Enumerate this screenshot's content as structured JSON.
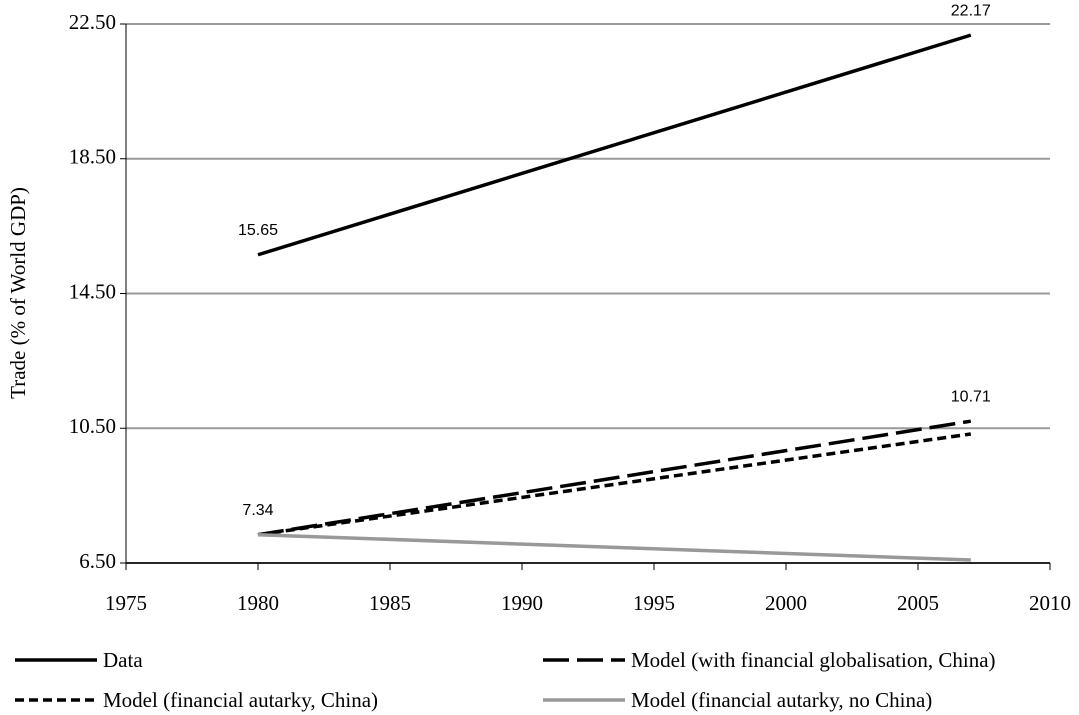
{
  "chart_data": {
    "type": "line",
    "y_label": "Trade (% of World GDP)",
    "xlim": [
      1975,
      2010
    ],
    "xticks": [
      1975,
      1980,
      1985,
      1990,
      1995,
      2000,
      2005,
      2010
    ],
    "ylim": [
      6.5,
      22.5
    ],
    "yticks": [
      {
        "value": 6.5,
        "label": "6.50"
      },
      {
        "value": 10.5,
        "label": "10.50"
      },
      {
        "value": 14.5,
        "label": "14.50"
      },
      {
        "value": 18.5,
        "label": "18.50"
      },
      {
        "value": 22.5,
        "label": "22.50"
      }
    ],
    "grid": true,
    "legend": "bottom",
    "x": [
      1980,
      2007
    ],
    "series": [
      {
        "name": "Data",
        "color": "#000000",
        "dash": "solid",
        "values": [
          15.65,
          22.17
        ],
        "value_labels": [
          "15.65",
          "22.17"
        ]
      },
      {
        "name": "Model (with financial globalisation, China)",
        "color": "#000000",
        "dash": "long",
        "values": [
          7.34,
          10.71
        ],
        "value_labels": [
          "7.34",
          "10.71"
        ]
      },
      {
        "name": "Model (financial autarky, China)",
        "color": "#000000",
        "dash": "short",
        "values": [
          7.34,
          10.33
        ]
      },
      {
        "name": "Model (financial autarky, no China)",
        "color": "#999999",
        "dash": "solid",
        "values": [
          7.34,
          6.59
        ]
      }
    ]
  }
}
